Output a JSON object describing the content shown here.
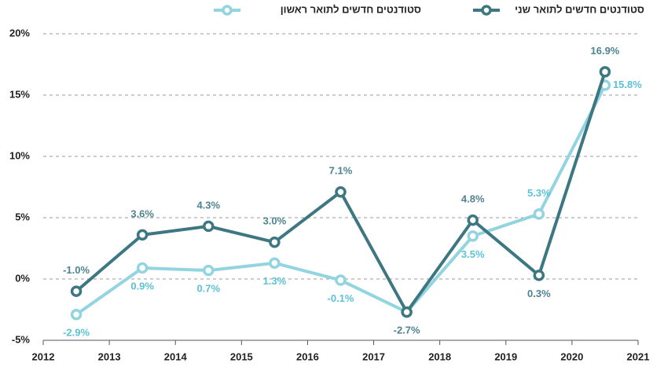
{
  "chart_data": {
    "type": "line",
    "x": [
      2012.5,
      2013.5,
      2014.5,
      2015.5,
      2016.5,
      2017.5,
      2018.5,
      2019.5,
      2020.5
    ],
    "series": [
      {
        "name": "סטודנטים חדשים לתואר שני",
        "color": "#3c7782",
        "label_color": "#4e8390",
        "values": [
          -1.0,
          3.6,
          4.3,
          3.0,
          7.1,
          -2.7,
          4.8,
          0.3,
          16.9
        ],
        "value_labels": [
          "-1.0%",
          "3.6%",
          "4.3%",
          "3.0%",
          "7.1%",
          "-2.7%",
          "4.8%",
          "0.3%",
          "16.9%"
        ]
      },
      {
        "name": "סטודנטים חדשים לתואר ראשון",
        "color": "#92d4e0",
        "label_color": "#5cc2d5",
        "values": [
          -2.9,
          0.9,
          0.7,
          1.3,
          -0.1,
          -2.7,
          3.5,
          5.3,
          15.8
        ],
        "value_labels": [
          "-2.9%",
          "0.9%",
          "0.7%",
          "1.3%",
          "-0.1%",
          null,
          "3.5%",
          "5.3%",
          "15.8%"
        ]
      }
    ],
    "xlim": [
      2012,
      2021
    ],
    "xticks": [
      2012,
      2013,
      2014,
      2015,
      2016,
      2017,
      2018,
      2019,
      2020,
      2021
    ],
    "ylim": [
      -5,
      20
    ],
    "yticks": [
      {
        "value": -5,
        "label": "-5%"
      },
      {
        "value": 0,
        "label": "0%"
      },
      {
        "value": 5,
        "label": "5%"
      },
      {
        "value": 10,
        "label": "10%"
      },
      {
        "value": 15,
        "label": "15%"
      },
      {
        "value": 20,
        "label": "20%"
      }
    ],
    "grid": true
  }
}
